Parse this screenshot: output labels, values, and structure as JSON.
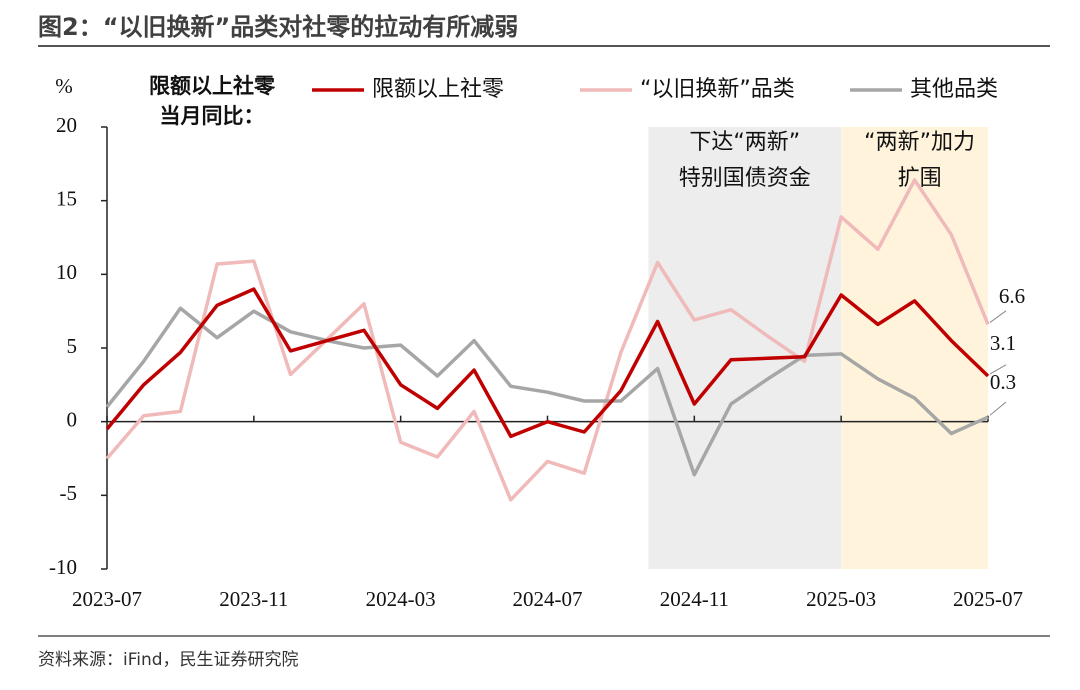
{
  "title": "图2：“以旧换新”品类对社零的拉动有所减弱",
  "source": "资料来源：iFind，民生证券研究院",
  "chart_data": {
    "type": "line",
    "y_label": "%",
    "legend_title": [
      "限额以上社零",
      "当月同比："
    ],
    "categories": [
      "2023-07",
      null,
      null,
      null,
      "2023-11",
      null,
      null,
      null,
      "2024-03",
      null,
      null,
      null,
      "2024-07",
      null,
      null,
      null,
      "2024-11",
      null,
      null,
      null,
      "2025-03",
      null,
      null,
      null,
      "2025-07"
    ],
    "series": [
      {
        "name": "限额以上社零",
        "color": "#c00000",
        "values": [
          -0.5,
          2.5,
          4.7,
          7.9,
          9.0,
          4.8,
          5.5,
          6.2,
          2.5,
          0.9,
          3.5,
          -1.0,
          0.0,
          -0.7,
          2.1,
          6.8,
          1.2,
          4.2,
          4.3,
          4.4,
          8.6,
          6.6,
          8.2,
          5.5,
          3.1
        ]
      },
      {
        "name": "“以旧换新”品类",
        "color": "#f0baba",
        "values": [
          -2.5,
          0.4,
          0.7,
          10.7,
          10.9,
          3.2,
          5.6,
          8.0,
          -1.4,
          -2.4,
          0.7,
          -5.3,
          -2.7,
          -3.5,
          4.7,
          10.8,
          6.9,
          7.6,
          5.8,
          4.1,
          13.9,
          11.7,
          16.4,
          12.7,
          6.6
        ]
      },
      {
        "name": "其他品类",
        "color": "#a6a6a6",
        "values": [
          1.0,
          4.1,
          7.7,
          5.7,
          7.5,
          6.1,
          5.5,
          5.0,
          5.2,
          3.1,
          5.5,
          2.4,
          2.0,
          1.4,
          1.4,
          3.6,
          -3.6,
          1.2,
          2.9,
          4.5,
          4.6,
          2.9,
          1.6,
          -0.8,
          0.3
        ]
      }
    ],
    "ylim": [
      -10,
      20
    ],
    "yticks": [
      -10,
      -5,
      0,
      5,
      10,
      15,
      20
    ],
    "shaded": [
      {
        "from": 14.75,
        "to": 20,
        "color": "#ededed",
        "label": [
          "下达“两新”",
          "特别国债资金"
        ]
      },
      {
        "from": 20,
        "to": 24,
        "color": "#fff3dc",
        "label": [
          "“两新”加力",
          "扩围"
        ]
      }
    ]
  }
}
